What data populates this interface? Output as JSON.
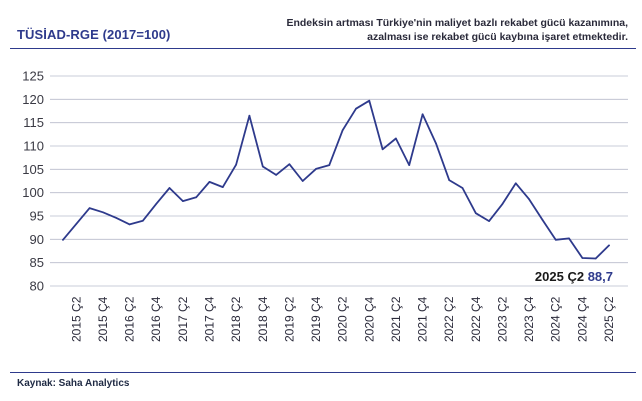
{
  "header": {
    "title": "TÜSİAD-RGE (2017=100)",
    "note_line1": "Endeksin artması Türkiye'nin maliyet bazlı rekabet gücü kazanımına,",
    "note_line2": "azalması ise rekabet gücü kaybına işaret etmektedir."
  },
  "footer": {
    "source": "Kaynak: Saha Analytics"
  },
  "chart_data": {
    "type": "line",
    "title": "TÜSİAD-RGE (2017=100)",
    "xlabel": "",
    "ylabel": "",
    "ylim": [
      80,
      125
    ],
    "yticks": [
      80,
      85,
      90,
      95,
      100,
      105,
      110,
      115,
      120,
      125
    ],
    "grid": true,
    "x": [
      "2015 Ç1",
      "2015 Ç2",
      "2015 Ç3",
      "2015 Ç4",
      "2016 Ç1",
      "2016 Ç2",
      "2016 Ç3",
      "2016 Ç4",
      "2017 Ç1",
      "2017 Ç2",
      "2017 Ç3",
      "2017 Ç4",
      "2018 Ç1",
      "2018 Ç2",
      "2018 Ç3",
      "2018 Ç4",
      "2019 Ç1",
      "2019 Ç2",
      "2019 Ç3",
      "2019 Ç4",
      "2020 Ç1",
      "2020 Ç2",
      "2020 Ç3",
      "2020 Ç4",
      "2021 Ç1",
      "2021 Ç2",
      "2021 Ç3",
      "2021 Ç4",
      "2022 Ç1",
      "2022 Ç2",
      "2022 Ç3",
      "2022 Ç4",
      "2023 Ç1",
      "2023 Ç2",
      "2023 Ç3",
      "2023 Ç4",
      "2024 Ç1",
      "2024 Ç2",
      "2024 Ç3",
      "2024 Ç4",
      "2025 Ç1",
      "2025 Ç2"
    ],
    "x_tick_labels": [
      "2015 Ç2",
      "2015 Ç4",
      "2016 Ç2",
      "2016 Ç4",
      "2017 Ç2",
      "2017 Ç4",
      "2018 Ç2",
      "2018 Ç4",
      "2019 Ç2",
      "2019 Ç4",
      "2020 Ç2",
      "2020 Ç4",
      "2021 Ç2",
      "2021 Ç4",
      "2022 Ç2",
      "2022 Ç4",
      "2023 Ç2",
      "2023 Ç4",
      "2024 Ç2",
      "2024 Ç4",
      "2025 Ç2"
    ],
    "series": [
      {
        "color": "#2e3a8c",
        "values": [
          89.9,
          93.3,
          96.7,
          95.8,
          94.6,
          93.2,
          94.0,
          97.6,
          101.0,
          98.2,
          99.0,
          102.3,
          101.2,
          106.0,
          116.5,
          105.6,
          103.8,
          106.1,
          102.5,
          105.1,
          105.9,
          113.4,
          118.0,
          119.7,
          109.3,
          111.6,
          105.9,
          116.8,
          110.6,
          102.7,
          101.0,
          95.6,
          93.9,
          97.6,
          102.0,
          98.6,
          94.2,
          89.9,
          90.2,
          86.0,
          85.9,
          88.7
        ]
      }
    ],
    "annotation": {
      "period": "2025 Ç2",
      "value": "88,7"
    }
  }
}
